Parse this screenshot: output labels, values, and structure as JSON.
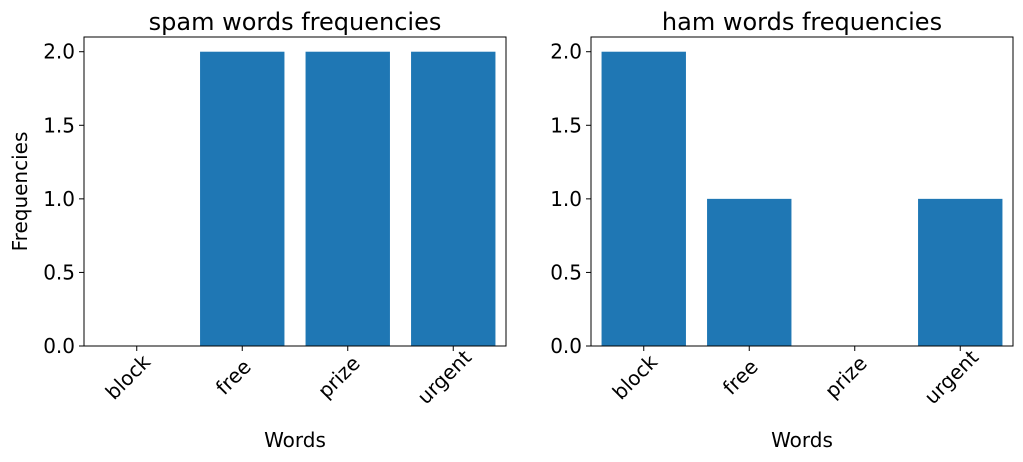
{
  "chart_data": [
    {
      "type": "bar",
      "title": "spam words frequencies",
      "xlabel": "Words",
      "ylabel": "Frequencies",
      "categories": [
        "block",
        "free",
        "prize",
        "urgent"
      ],
      "values": [
        0,
        2,
        2,
        2
      ],
      "ylim": [
        0,
        2.1
      ],
      "yticks": [
        "0.0",
        "0.5",
        "1.0",
        "1.5",
        "2.0"
      ],
      "bar_color": "#1f77b4",
      "grid": false
    },
    {
      "type": "bar",
      "title": "ham words frequencies",
      "xlabel": "Words",
      "ylabel": "",
      "categories": [
        "block",
        "free",
        "prize",
        "urgent"
      ],
      "values": [
        2,
        1,
        0,
        1
      ],
      "ylim": [
        0,
        2.1
      ],
      "yticks": [
        "0.0",
        "0.5",
        "1.0",
        "1.5",
        "2.0"
      ],
      "bar_color": "#1f77b4",
      "grid": false
    }
  ]
}
